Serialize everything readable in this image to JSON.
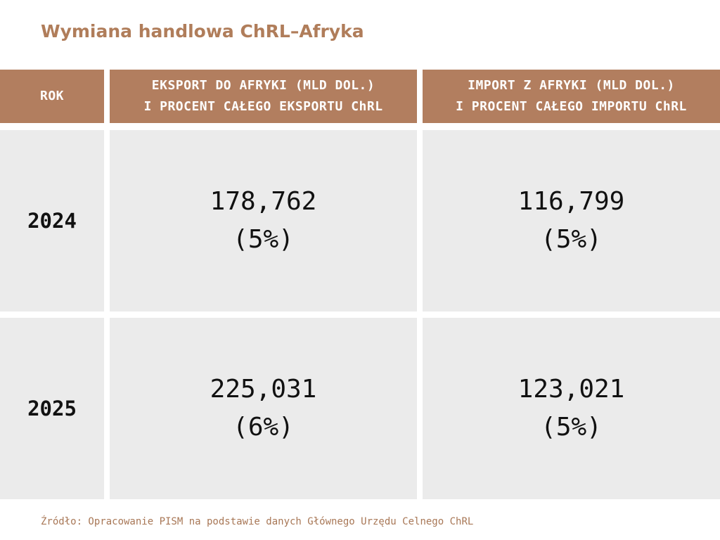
{
  "title": "Wymiana handlowa ChRL–Afryka",
  "table": {
    "headers": {
      "year": "ROK",
      "export_line1": "EKSPORT DO AFRYKI (MLD DOL.)",
      "export_line2": "I PROCENT CAŁEGO EKSPORTU ChRL",
      "import_line1": "IMPORT Z AFRYKI (MLD DOL.)",
      "import_line2": "I PROCENT CAŁEGO IMPORTU ChRL"
    },
    "rows": [
      {
        "year": "2024",
        "export_value": "178,762",
        "export_share": "(5%)",
        "import_value": "116,799",
        "import_share": "(5%)"
      },
      {
        "year": "2025",
        "export_value": "225,031",
        "export_share": "(6%)",
        "import_value": "123,021",
        "import_share": "(5%)"
      }
    ]
  },
  "source": "Źródło: Opracowanie PISM na podstawie danych Głównego Urzędu Celnego ChRL",
  "colors": {
    "accent": "#b27e5f",
    "cell_background": "#ebebeb",
    "title": "#b07d5a"
  }
}
